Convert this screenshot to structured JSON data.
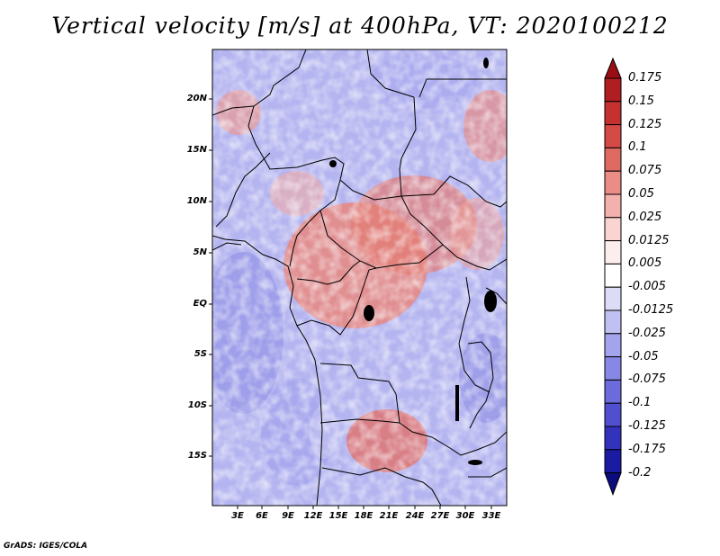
{
  "title": "Vertical velocity [m/s] at 400hPa, VT: 2020100212",
  "lat_labels": [
    "20N",
    "15N",
    "10N",
    "5N",
    "EQ",
    "5S",
    "10S",
    "15S"
  ],
  "lon_labels": [
    "3E",
    "6E",
    "9E",
    "12E",
    "15E",
    "18E",
    "21E",
    "24E",
    "27E",
    "30E",
    "33E"
  ],
  "colorbar": {
    "labels": [
      "0.175",
      "0.15",
      "0.125",
      "0.1",
      "0.075",
      "0.05",
      "0.025",
      "0.0125",
      "0.005",
      "-0.005",
      "-0.0125",
      "-0.025",
      "-0.05",
      "-0.075",
      "-0.1",
      "-0.125",
      "-0.175",
      "-0.2"
    ],
    "colors": [
      "#9b0d14",
      "#b01e22",
      "#c5312f",
      "#d44a44",
      "#df6a62",
      "#e98d86",
      "#f3b1ad",
      "#f9d4d1",
      "#fdeeee",
      "#ffffff",
      "#dcdcf7",
      "#c0c0f2",
      "#a4a4ee",
      "#8787e6",
      "#6b6bdc",
      "#4f4fd0",
      "#3232bd",
      "#1a1aa2",
      "#0c0c7e"
    ]
  },
  "footer": "GrADS: IGES/COLA"
}
